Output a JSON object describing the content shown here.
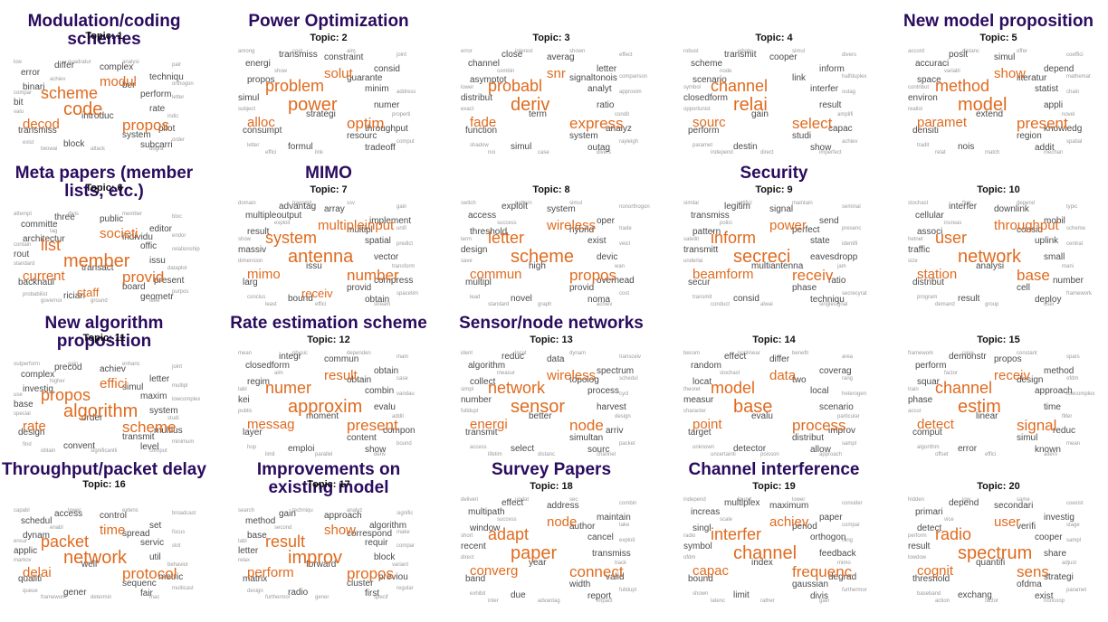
{
  "colors": {
    "heading": "#2a0b5e",
    "major": "#e06b1f",
    "medium": "#4a4a4a",
    "minor": "#9a9a9a"
  },
  "panels": [
    {
      "heading": "Modulation/coding schemes",
      "topic": "Topic: 1",
      "major": [
        "code",
        "scheme",
        "propos",
        "decod",
        "modul"
      ],
      "medium": [
        "error",
        "complex",
        "perform",
        "bit",
        "rate",
        "transmiss",
        "system",
        "block",
        "techniqu",
        "differ",
        "pilot",
        "binari",
        "subcarri",
        "introduc",
        "ber"
      ],
      "minor": [
        "low",
        "pair",
        "valu",
        "letter",
        "exist",
        "order",
        "attack",
        "achiev",
        "analysi",
        "indic",
        "twowai",
        "quadratur",
        "orthogon",
        "compar",
        "dogra"
      ]
    },
    {
      "heading": "Power Optimization",
      "topic": "Topic: 2",
      "major": [
        "power",
        "problem",
        "optim",
        "alloc",
        "solut"
      ],
      "medium": [
        "energi",
        "constraint",
        "minim",
        "simul",
        "numer",
        "consumpt",
        "resourc",
        "formul",
        "consid",
        "transmiss",
        "throughput",
        "propos",
        "tradeoff",
        "strategi",
        "guarante"
      ],
      "minor": [
        "among",
        "joint",
        "subject",
        "address",
        "letter",
        "comput",
        "link",
        "show",
        "aim",
        "properti",
        "effici",
        "cost"
      ]
    },
    {
      "heading": "",
      "topic": "Topic: 3",
      "major": [
        "deriv",
        "probabl",
        "express",
        "fade",
        "snr"
      ],
      "medium": [
        "channel",
        "averag",
        "analyt",
        "distribut",
        "ratio",
        "function",
        "system",
        "simul",
        "letter",
        "close",
        "analyz",
        "asymptot",
        "outag",
        "term",
        "signaltonois"
      ],
      "minor": [
        "error",
        "effect",
        "exact",
        "approxim",
        "shadow",
        "rayleigh",
        "case",
        "combin",
        "shown",
        "condit",
        "noi",
        "interest",
        "comparison",
        "lower",
        "divers"
      ]
    },
    {
      "heading": "",
      "topic": "Topic: 4",
      "major": [
        "relai",
        "channel",
        "select",
        "sourc"
      ],
      "medium": [
        "scheme",
        "cooper",
        "interfer",
        "closedform",
        "result",
        "perform",
        "studi",
        "destin",
        "inform",
        "transmit",
        "capac",
        "scenario",
        "show",
        "gain",
        "link"
      ],
      "minor": [
        "robust",
        "divers",
        "opportunist",
        "outag",
        "paramet",
        "achiev",
        "direct",
        "node",
        "simul",
        "amplifi",
        "independ",
        "whole",
        "halfduplex",
        "symbol",
        "imperfect"
      ]
    },
    {
      "heading": "New model proposition",
      "topic": "Topic: 5",
      "major": [
        "model",
        "method",
        "present",
        "paramet",
        "show"
      ],
      "medium": [
        "accuraci",
        "simul",
        "statist",
        "environ",
        "appli",
        "densiti",
        "region",
        "nois",
        "depend",
        "posit",
        "knowledg",
        "space",
        "addit",
        "extend",
        "literatur"
      ],
      "minor": [
        "accord",
        "coeffici",
        "realist",
        "chain",
        "tradit",
        "spatial",
        "match",
        "variabl",
        "offer",
        "novel",
        "relat",
        "distanc",
        "mathemat",
        "contribut",
        "mechan"
      ]
    },
    {
      "heading": "Meta papers (member lists, etc.)",
      "topic": "Topic: 6",
      "major": [
        "member",
        "list",
        "provid",
        "current",
        "societi",
        "staff"
      ],
      "medium": [
        "committe",
        "public",
        "offic",
        "rout",
        "issu",
        "backhaul",
        "board",
        "rician",
        "editor",
        "three",
        "present",
        "architectur",
        "geometr",
        "transact",
        "individu"
      ],
      "minor": [
        "attempt",
        "bloc",
        "standard",
        "relationship",
        "probabilist",
        "purpos",
        "ground",
        "tag",
        "member",
        "dataplot",
        "governor",
        "divis",
        "endor",
        "contain",
        "ieee"
      ]
    },
    {
      "heading": "MIMO",
      "topic": "Topic: 7",
      "major": [
        "antenna",
        "system",
        "number",
        "mimo",
        "multipleinput",
        "receiv"
      ],
      "medium": [
        "multipleoutput",
        "array",
        "spatial",
        "massiv",
        "vector",
        "larg",
        "provid",
        "bound",
        "implement",
        "advantag",
        "compress",
        "result",
        "obtain",
        "issu",
        "multipl"
      ],
      "minor": [
        "domain",
        "gain",
        "dimension",
        "predict",
        "conclus",
        "spacetim",
        "effici",
        "exploit",
        "ssv",
        "transform",
        "least",
        "transmit",
        "unifi",
        "show",
        "stream"
      ]
    },
    {
      "heading": "",
      "topic": "Topic: 8",
      "major": [
        "scheme",
        "letter",
        "propos",
        "commun",
        "wireless"
      ],
      "medium": [
        "access",
        "system",
        "exist",
        "design",
        "devic",
        "multipl",
        "provid",
        "novel",
        "oper",
        "exploit",
        "overhead",
        "threshold",
        "noma",
        "high",
        "hybrid"
      ],
      "minor": [
        "switch",
        "nonorthogon",
        "save",
        "veicl",
        "lead",
        "cost",
        "graph",
        "success",
        "simul",
        "wan",
        "standard",
        "pattern",
        "trade",
        "term",
        "achiev"
      ]
    },
    {
      "heading": "Security",
      "topic": "Topic: 9",
      "major": [
        "secreci",
        "inform",
        "receiv",
        "beamform",
        "power"
      ],
      "medium": [
        "transmiss",
        "signal",
        "state",
        "transmitt",
        "eavesdropp",
        "secur",
        "phase",
        "consid",
        "send",
        "legitim",
        "ratio",
        "pattern",
        "techniqu",
        "multiantenna",
        "perfect"
      ],
      "minor": [
        "similar",
        "seminal",
        "underlai",
        "identifi",
        "transmit",
        "secrecyrat",
        "alwai",
        "polici",
        "maintain",
        "jam",
        "conduct",
        "artifici",
        "presenc",
        "satellit",
        "singlesignal"
      ]
    },
    {
      "heading": "",
      "topic": "Topic: 10",
      "major": [
        "network",
        "user",
        "base",
        "station",
        "throughput"
      ],
      "medium": [
        "cellular",
        "downlink",
        "uplink",
        "traffic",
        "small",
        "distribut",
        "cell",
        "result",
        "mobil",
        "interfer",
        "number",
        "associ",
        "deploy",
        "analysi",
        "consid"
      ],
      "minor": [
        "stochast",
        "typic",
        "size",
        "central",
        "program",
        "framework",
        "group",
        "increas",
        "depend",
        "mani",
        "demand",
        "first",
        "scheme",
        "hetnet",
        "user"
      ]
    },
    {
      "heading": "New algorithm proposition",
      "topic": "Topic: 11",
      "major": [
        "algorithm",
        "propos",
        "scheme",
        "rate",
        "effici"
      ],
      "medium": [
        "complex",
        "achiev",
        "maxim",
        "base",
        "system",
        "design",
        "transmit",
        "convent",
        "letter",
        "precod",
        "multius",
        "investig",
        "level",
        "order",
        "simul"
      ],
      "minor": [
        "outperform",
        "joint",
        "special",
        "lowcomplex",
        "find",
        "minimum",
        "significantli",
        "higher",
        "enhanc",
        "studi",
        "obtain",
        "gain",
        "multipl",
        "use",
        "comput"
      ]
    },
    {
      "heading": "Rate estimation scheme",
      "topic": "Topic: 12",
      "major": [
        "approxim",
        "numer",
        "present",
        "messag",
        "result"
      ],
      "medium": [
        "closedform",
        "commun",
        "combin",
        "kei",
        "evalu",
        "layer",
        "content",
        "emploi",
        "obtain",
        "integr",
        "compon",
        "regim",
        "show",
        "moment",
        "obtain"
      ],
      "minor": [
        "mean",
        "main",
        "public",
        "vandau",
        "hop",
        "bound",
        "parallel",
        "aim",
        "dependen",
        "addit",
        "limit",
        "physic",
        "case",
        "tabl",
        "deriv"
      ]
    },
    {
      "heading": "Sensor/node networks",
      "topic": "Topic: 13",
      "major": [
        "sensor",
        "network",
        "node",
        "energi",
        "wireless"
      ],
      "medium": [
        "algorithm",
        "data",
        "process",
        "number",
        "harvest",
        "transmit",
        "simultan",
        "select",
        "spectrum",
        "reduc",
        "arriv",
        "collect",
        "sourc",
        "better",
        "topolog"
      ],
      "minor": [
        "ident",
        "transceiv",
        "fulldupl",
        "cycl",
        "access",
        "packet",
        "distanc",
        "measur",
        "dynam",
        "design",
        "lifetim",
        "locat",
        "schedul",
        "simpl",
        "channel"
      ]
    },
    {
      "heading": "",
      "topic": "Topic: 14",
      "major": [
        "base",
        "model",
        "process",
        "point",
        "data"
      ],
      "medium": [
        "random",
        "differ",
        "local",
        "measur",
        "scenario",
        "target",
        "distribut",
        "detector",
        "coverag",
        "effect",
        "improv",
        "locat",
        "allow",
        "evalu",
        "two"
      ],
      "minor": [
        "becom",
        "area",
        "character",
        "heterogen",
        "unknown",
        "sampl",
        "poisson",
        "stochast",
        "benefit",
        "particular",
        "uncertainti",
        "nonlinear",
        "rang",
        "theoret",
        "approach"
      ]
    },
    {
      "heading": "",
      "topic": "Topic: 15",
      "major": [
        "estim",
        "channel",
        "signal",
        "detect",
        "receiv"
      ],
      "medium": [
        "perform",
        "propos",
        "approach",
        "phase",
        "time",
        "comput",
        "simul",
        "error",
        "method",
        "demonstr",
        "reduc",
        "squar",
        "known",
        "linear",
        "design"
      ],
      "minor": [
        "framework",
        "spars",
        "accur",
        "lowcomplex",
        "algorithm",
        "mean",
        "effici",
        "factor",
        "constant",
        "filter",
        "offset",
        "case",
        "ofdm",
        "train",
        "altern"
      ]
    },
    {
      "heading": "Throughput/packet delay",
      "topic": "Topic: 16",
      "major": [
        "network",
        "packet",
        "protocol",
        "delai",
        "time"
      ],
      "medium": [
        "schedul",
        "control",
        "servic",
        "applic",
        "util",
        "qualiti",
        "sequenc",
        "gener",
        "set",
        "access",
        "metric",
        "dynam",
        "fair",
        "well",
        "spread"
      ],
      "minor": [
        "capabl",
        "broadcast",
        "markov",
        "slot",
        "queue",
        "multicast",
        "determin",
        "enabl",
        "extens",
        "behavior",
        "framework",
        "lower",
        "focus",
        "ensur",
        "mac"
      ]
    },
    {
      "heading": "Improvements on existing model",
      "topic": "Topic: 17",
      "major": [
        "improv",
        "result",
        "propos",
        "perform",
        "show"
      ],
      "medium": [
        "method",
        "approach",
        "requir",
        "letter",
        "block",
        "matrix",
        "cluster",
        "radio",
        "algorithm",
        "gain",
        "previou",
        "base",
        "first",
        "forward",
        "correspond"
      ],
      "minor": [
        "search",
        "signific",
        "relax",
        "compar",
        "design",
        "regular",
        "gener",
        "second",
        "analyz",
        "variant",
        "furthermor",
        "techniqu",
        "make",
        "tabl",
        "specif"
      ]
    },
    {
      "heading": "Survey Papers",
      "topic": "Topic: 18",
      "major": [
        "paper",
        "adapt",
        "connect",
        "converg",
        "node"
      ],
      "medium": [
        "multipath",
        "address",
        "cancel",
        "recent",
        "transmiss",
        "band",
        "width",
        "due",
        "maintain",
        "effect",
        "valid",
        "window",
        "report",
        "year",
        "author"
      ],
      "minor": [
        "deliveri",
        "combin",
        "direct",
        "exploit",
        "exhibit",
        "fulldupl",
        "advantag",
        "success",
        "sec",
        "track",
        "inter",
        "updat",
        "take",
        "short",
        "impact"
      ]
    },
    {
      "heading": "Channel interference",
      "topic": "Topic: 19",
      "major": [
        "channel",
        "interfer",
        "frequenc",
        "capac",
        "achiev"
      ],
      "medium": [
        "increas",
        "maximum",
        "orthogon",
        "symbol",
        "feedback",
        "bound",
        "gaussian",
        "limit",
        "paper",
        "multiplex",
        "degrad",
        "singl",
        "divis",
        "index",
        "period"
      ],
      "minor": [
        "independ",
        "consider",
        "ofdm",
        "rang",
        "shown",
        "furthermor",
        "rather",
        "scale",
        "lower",
        "mimo",
        "latenc",
        "found",
        "compar",
        "radio",
        "gain"
      ]
    },
    {
      "heading": "",
      "topic": "Topic: 20",
      "major": [
        "spectrum",
        "radio",
        "sens",
        "cognit",
        "user"
      ],
      "medium": [
        "primari",
        "secondari",
        "cooper",
        "result",
        "share",
        "threshold",
        "ofdma",
        "exchang",
        "investig",
        "depend",
        "strategi",
        "detect",
        "exist",
        "quantifi",
        "verifi"
      ],
      "minor": [
        "hidden",
        "coexist",
        "lowdow",
        "sampl",
        "baseband",
        "paramet",
        "factor",
        "vice",
        "same",
        "adjust",
        "action",
        "low",
        "stage",
        "perform",
        "noncoop"
      ]
    }
  ]
}
